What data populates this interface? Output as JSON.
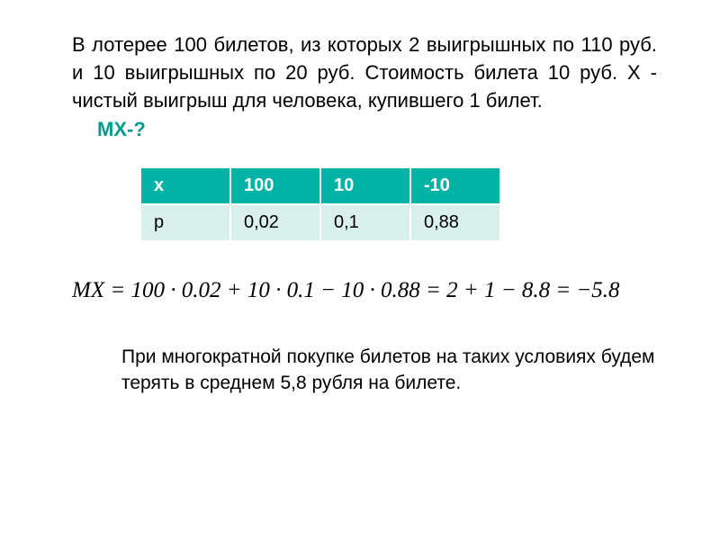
{
  "problem_text": "В лотерее 100 билетов, из которых 2 выигрышных по 110 руб. и 10 выигрышных по 20 руб. Стоимость билета 10 руб. X - чистый выигрыш для человека, купившего 1 билет.",
  "question_label": "MX-?",
  "table": {
    "header_row_bg": "#00b3a4",
    "header_row_fg": "#ffffff",
    "body_row_bg": "#d9f0ec",
    "body_row_fg": "#000000",
    "columns": [
      "x",
      "100",
      "10",
      "-10"
    ],
    "rows": [
      [
        "p",
        "0,02",
        "0,1",
        "0,88"
      ]
    ]
  },
  "formula_text": "MX = 100 · 0.02 + 10 · 0.1 − 10 · 0.88 = 2 + 1 − 8.8 = −5.8",
  "conclusion_text": "При многократной покупке билетов на таких условиях будем терять в среднем 5,8 рубля на билете.",
  "colors": {
    "accent": "#009b8f",
    "background": "#ffffff",
    "text": "#000000"
  },
  "typography": {
    "body_fontsize": 22,
    "formula_fontsize": 25,
    "table_fontsize": 20
  }
}
